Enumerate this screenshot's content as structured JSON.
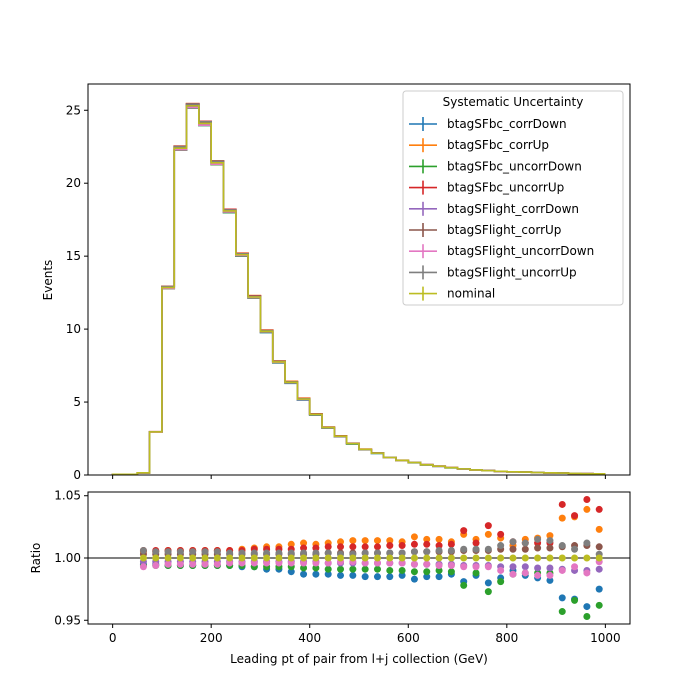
{
  "chart_data": {
    "type": "line",
    "main": {
      "ylabel": "Events",
      "ylim": [
        0,
        26.8
      ],
      "yticks": [
        0,
        5,
        10,
        15,
        20,
        25
      ],
      "bin_edges": [
        0,
        25,
        50,
        75,
        100,
        125,
        150,
        175,
        200,
        225,
        250,
        275,
        300,
        325,
        350,
        375,
        400,
        425,
        450,
        475,
        500,
        525,
        550,
        575,
        600,
        625,
        650,
        675,
        700,
        725,
        750,
        775,
        800,
        825,
        850,
        875,
        900,
        925,
        950,
        975,
        1000
      ],
      "nominal_values": [
        0.05,
        0.05,
        0.15,
        2.95,
        12.85,
        22.4,
        25.3,
        24.1,
        21.4,
        18.1,
        15.1,
        12.2,
        9.85,
        7.75,
        6.35,
        5.2,
        4.15,
        3.25,
        2.65,
        2.15,
        1.75,
        1.5,
        1.2,
        1.0,
        0.85,
        0.7,
        0.6,
        0.5,
        0.42,
        0.35,
        0.3,
        0.25,
        0.22,
        0.2,
        0.17,
        0.15,
        0.13,
        0.11,
        0.09,
        0.08
      ]
    },
    "ratio": {
      "ylabel": "Ratio",
      "xlabel": "Leading pt of pair from l+j collection (GeV)",
      "ylim": [
        0.947,
        1.053
      ],
      "yticks": [
        "0.95",
        "1.00",
        "1.05"
      ],
      "reference_line": 1.0,
      "x": [
        62.5,
        87.5,
        112.5,
        137.5,
        162.5,
        187.5,
        212.5,
        237.5,
        262.5,
        287.5,
        312.5,
        337.5,
        362.5,
        387.5,
        412.5,
        437.5,
        462.5,
        487.5,
        512.5,
        537.5,
        562.5,
        587.5,
        612.5,
        637.5,
        662.5,
        687.5,
        712.5,
        737.5,
        762.5,
        787.5,
        812.5,
        837.5,
        862.5,
        887.5,
        912.5,
        937.5,
        962.5,
        987.5
      ]
    },
    "xlim": [
      -50,
      1050
    ],
    "xticks": [
      0,
      200,
      400,
      600,
      800,
      1000
    ],
    "legend": {
      "title": "Systematic Uncertainty",
      "placement": "top-right"
    },
    "series": [
      {
        "name": "btagSFbc_corrDown",
        "color": "#1f77b4",
        "ratio": [
          0.995,
          0.995,
          0.994,
          0.994,
          0.994,
          0.994,
          0.994,
          0.994,
          0.993,
          0.993,
          0.991,
          0.991,
          0.989,
          0.987,
          0.987,
          0.987,
          0.986,
          0.986,
          0.985,
          0.985,
          0.985,
          0.986,
          0.983,
          0.985,
          0.985,
          0.987,
          0.981,
          0.986,
          0.98,
          0.984,
          0.99,
          0.986,
          0.984,
          0.982,
          0.968,
          0.967,
          0.961,
          0.975
        ]
      },
      {
        "name": "btagSFbc_corrUp",
        "color": "#ff7f0e",
        "ratio": [
          1.005,
          1.005,
          1.006,
          1.006,
          1.006,
          1.006,
          1.006,
          1.006,
          1.007,
          1.008,
          1.009,
          1.009,
          1.011,
          1.012,
          1.011,
          1.012,
          1.013,
          1.014,
          1.014,
          1.014,
          1.014,
          1.013,
          1.017,
          1.015,
          1.015,
          1.013,
          1.019,
          1.015,
          1.019,
          1.016,
          1.01,
          1.015,
          1.016,
          1.018,
          1.032,
          1.033,
          1.039,
          1.023
        ]
      },
      {
        "name": "btagSFbc_uncorrDown",
        "color": "#2ca02c",
        "ratio": [
          0.994,
          0.994,
          0.994,
          0.994,
          0.994,
          0.994,
          0.994,
          0.994,
          0.994,
          0.993,
          0.993,
          0.993,
          0.993,
          0.992,
          0.992,
          0.991,
          0.991,
          0.991,
          0.991,
          0.991,
          0.99,
          0.99,
          0.989,
          0.989,
          0.99,
          0.989,
          0.978,
          0.988,
          0.973,
          0.981,
          0.987,
          0.988,
          0.988,
          0.988,
          0.957,
          0.966,
          0.953,
          0.962
        ]
      },
      {
        "name": "btagSFbc_uncorrUp",
        "color": "#d62728",
        "ratio": [
          1.006,
          1.006,
          1.006,
          1.006,
          1.006,
          1.006,
          1.006,
          1.006,
          1.006,
          1.007,
          1.007,
          1.007,
          1.007,
          1.008,
          1.008,
          1.009,
          1.009,
          1.009,
          1.009,
          1.009,
          1.01,
          1.01,
          1.011,
          1.011,
          1.01,
          1.011,
          1.022,
          1.012,
          1.026,
          1.019,
          1.013,
          1.012,
          1.012,
          1.012,
          1.043,
          1.034,
          1.047,
          1.039
        ]
      },
      {
        "name": "btagSFlight_corrDown",
        "color": "#9467bd",
        "ratio": [
          0.997,
          0.997,
          0.997,
          0.997,
          0.997,
          0.997,
          0.997,
          0.997,
          0.997,
          0.997,
          0.997,
          0.997,
          0.997,
          0.997,
          0.997,
          0.996,
          0.996,
          0.996,
          0.996,
          0.996,
          0.996,
          0.996,
          0.995,
          0.995,
          0.995,
          0.995,
          0.994,
          0.994,
          0.994,
          0.993,
          0.993,
          0.993,
          0.992,
          0.992,
          0.991,
          0.99,
          0.99,
          0.991
        ]
      },
      {
        "name": "btagSFlight_corrUp",
        "color": "#8c564b",
        "ratio": [
          1.003,
          1.003,
          1.003,
          1.003,
          1.003,
          1.003,
          1.003,
          1.003,
          1.003,
          1.003,
          1.003,
          1.003,
          1.003,
          1.003,
          1.003,
          1.004,
          1.004,
          1.004,
          1.004,
          1.004,
          1.004,
          1.004,
          1.005,
          1.005,
          1.005,
          1.005,
          1.006,
          1.006,
          1.006,
          1.007,
          1.007,
          1.007,
          1.008,
          1.008,
          1.009,
          1.01,
          1.01,
          1.009
        ]
      },
      {
        "name": "btagSFlight_uncorrDown",
        "color": "#e377c2",
        "ratio": [
          0.993,
          0.994,
          0.995,
          0.995,
          0.995,
          0.995,
          0.995,
          0.996,
          0.996,
          0.996,
          0.996,
          0.996,
          0.996,
          0.996,
          0.996,
          0.996,
          0.997,
          0.997,
          0.996,
          0.996,
          0.996,
          0.996,
          0.995,
          0.995,
          0.994,
          0.994,
          0.993,
          0.993,
          0.993,
          0.99,
          0.987,
          0.988,
          0.986,
          0.986,
          0.99,
          0.993,
          0.988,
          0.997
        ]
      },
      {
        "name": "btagSFlight_uncorrUp",
        "color": "#7f7f7f",
        "ratio": [
          1.006,
          1.005,
          1.005,
          1.005,
          1.005,
          1.005,
          1.005,
          1.004,
          1.004,
          1.004,
          1.004,
          1.004,
          1.004,
          1.004,
          1.004,
          1.004,
          1.003,
          1.003,
          1.004,
          1.004,
          1.004,
          1.004,
          1.005,
          1.005,
          1.006,
          1.006,
          1.007,
          1.007,
          1.007,
          1.01,
          1.013,
          1.012,
          1.015,
          1.014,
          1.01,
          1.007,
          1.012,
          1.003
        ]
      },
      {
        "name": "nominal",
        "color": "#bcbd22",
        "ratio": [
          1.0,
          1.0,
          1.0,
          1.0,
          1.0,
          1.0,
          1.0,
          1.0,
          1.0,
          1.0,
          1.0,
          1.0,
          1.0,
          1.0,
          1.0,
          1.0,
          1.0,
          1.0,
          1.0,
          1.0,
          1.0,
          1.0,
          1.0,
          1.0,
          1.0,
          1.0,
          1.0,
          1.0,
          1.0,
          1.0,
          1.0,
          1.0,
          1.0,
          1.0,
          1.0,
          1.0,
          1.0,
          1.0
        ]
      }
    ]
  }
}
